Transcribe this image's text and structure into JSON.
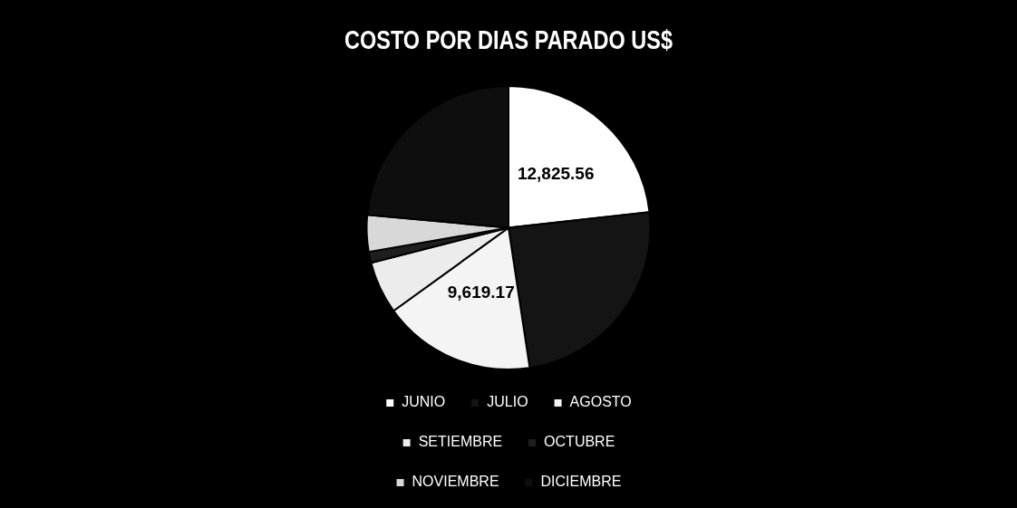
{
  "chart_data": {
    "type": "pie",
    "title": "COSTO POR DIAS PARADO US$",
    "categories": [
      "JUNIO",
      "JULIO",
      "AGOSTO",
      "SETIEMBRE",
      "OCTUBRE",
      "NOVIEMBRE",
      "DICIEMBRE"
    ],
    "values": [
      12825.56,
      13450,
      9619.17,
      3300,
      700,
      2300,
      13000
    ],
    "value_labels": [
      "12,825.56",
      null,
      "9,619.17",
      null,
      null,
      null,
      null
    ],
    "colors": [
      "#ffffff",
      "#141414",
      "#f4f4f4",
      "#ececec",
      "#1e1e1e",
      "#d8d8d8",
      "#0e0e0e"
    ],
    "legend": "bottom"
  }
}
